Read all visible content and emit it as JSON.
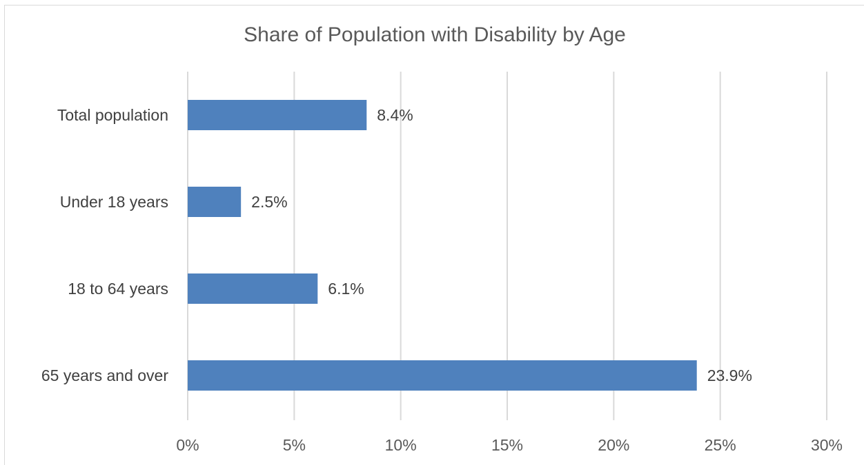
{
  "chart_data": {
    "type": "bar",
    "orientation": "horizontal",
    "title": "Share of Population with Disability by Age",
    "categories": [
      "Total population",
      "Under 18 years",
      "18 to 64 years",
      "65 years and over"
    ],
    "values": [
      8.4,
      2.5,
      6.1,
      23.9
    ],
    "data_labels": [
      "8.4%",
      "2.5%",
      "6.1%",
      "23.9%"
    ],
    "x_ticks": [
      0,
      5,
      10,
      15,
      20,
      25,
      30
    ],
    "x_tick_labels": [
      "0%",
      "5%",
      "10%",
      "15%",
      "20%",
      "25%",
      "30%"
    ],
    "xlim": [
      0,
      30
    ],
    "xlabel": "",
    "ylabel": "",
    "grid": "vertical",
    "legend": "none",
    "bar_color": "#4f81bd",
    "grid_color": "#d9d9d9"
  }
}
